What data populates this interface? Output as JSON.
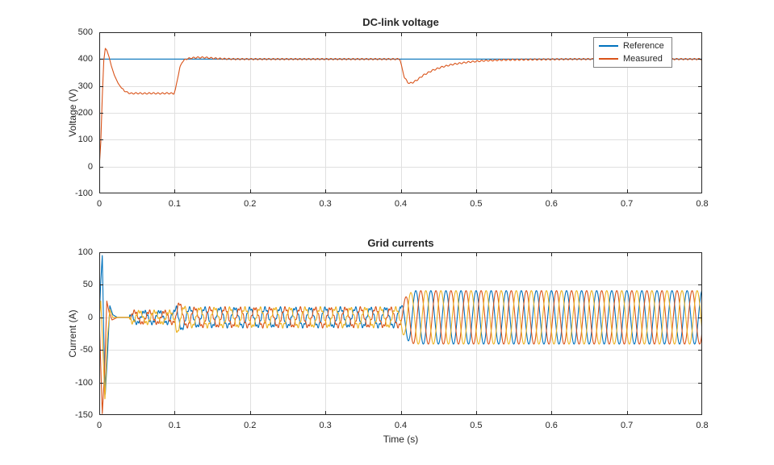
{
  "figure": {
    "background": "#ffffff"
  },
  "layout_colors": {
    "axis": "#262626",
    "grid": "#e0e0e0",
    "text": "#262626"
  },
  "chart_data": [
    {
      "type": "line",
      "title": "DC-link voltage",
      "xlabel": "",
      "ylabel": "Voltage (V)",
      "xlim": [
        0,
        0.8
      ],
      "ylim": [
        -100,
        500
      ],
      "grid": true,
      "xtick_labels": [
        "0",
        "0.1",
        "0.2",
        "0.3",
        "0.4",
        "0.5",
        "0.6",
        "0.7",
        "0.8"
      ],
      "ytick_labels": [
        "-100",
        "0",
        "100",
        "200",
        "300",
        "400",
        "500"
      ],
      "legend": {
        "position": "northeast",
        "entries": [
          "Reference",
          "Measured"
        ]
      },
      "series": [
        {
          "name": "Reference",
          "color": "#0072BD",
          "points": [
            [
              0,
              400
            ],
            [
              0.8,
              400
            ]
          ]
        },
        {
          "name": "Measured",
          "color": "#D95319",
          "ripple": {
            "amplitude": 2.5,
            "frequency_hz": 170,
            "t_start": 0.03
          },
          "points": [
            [
              0,
              0
            ],
            [
              0.002,
              90
            ],
            [
              0.004,
              260
            ],
            [
              0.006,
              395
            ],
            [
              0.008,
              440
            ],
            [
              0.01,
              433
            ],
            [
              0.013,
              408
            ],
            [
              0.016,
              375
            ],
            [
              0.02,
              340
            ],
            [
              0.025,
              310
            ],
            [
              0.03,
              290
            ],
            [
              0.036,
              277
            ],
            [
              0.042,
              272
            ],
            [
              0.05,
              273
            ],
            [
              0.06,
              272
            ],
            [
              0.07,
              273
            ],
            [
              0.08,
              272
            ],
            [
              0.09,
              273
            ],
            [
              0.099,
              272
            ],
            [
              0.101,
              285
            ],
            [
              0.104,
              330
            ],
            [
              0.107,
              368
            ],
            [
              0.11,
              390
            ],
            [
              0.115,
              400
            ],
            [
              0.122,
              404
            ],
            [
              0.13,
              406
            ],
            [
              0.14,
              406
            ],
            [
              0.152,
              403
            ],
            [
              0.165,
              401
            ],
            [
              0.18,
              400
            ],
            [
              0.22,
              400
            ],
            [
              0.26,
              400
            ],
            [
              0.3,
              400
            ],
            [
              0.35,
              400
            ],
            [
              0.399,
              400
            ],
            [
              0.402,
              362
            ],
            [
              0.405,
              332
            ],
            [
              0.409,
              314
            ],
            [
              0.412,
              310
            ],
            [
              0.416,
              313
            ],
            [
              0.421,
              321
            ],
            [
              0.43,
              340
            ],
            [
              0.442,
              358
            ],
            [
              0.455,
              371
            ],
            [
              0.47,
              381
            ],
            [
              0.49,
              389
            ],
            [
              0.51,
              394
            ],
            [
              0.535,
              397
            ],
            [
              0.56,
              398
            ],
            [
              0.59,
              399
            ],
            [
              0.63,
              400
            ],
            [
              0.68,
              400
            ],
            [
              0.73,
              400
            ],
            [
              0.8,
              400
            ]
          ]
        }
      ]
    },
    {
      "type": "line",
      "title": "Grid currents",
      "xlabel": "Time (s)",
      "ylabel": "Current (A)",
      "xlim": [
        0,
        0.8
      ],
      "ylim": [
        -150,
        100
      ],
      "grid": true,
      "xtick_labels": [
        "0",
        "0.1",
        "0.2",
        "0.3",
        "0.4",
        "0.5",
        "0.6",
        "0.7",
        "0.8"
      ],
      "ytick_labels": [
        "-150",
        "-100",
        "-50",
        "0",
        "50",
        "100"
      ],
      "three_phase_model": {
        "frequency_hz": 50,
        "sample_step_s": 0.0002,
        "phases_deg": [
          90,
          -30,
          210
        ],
        "ripple": {
          "amplitude": 2.5,
          "frequency_hz": 290,
          "t_start": 0.04,
          "t_end": 0.4
        },
        "amplitude_envelope": [
          [
            0,
            0
          ],
          [
            0.04,
            0
          ],
          [
            0.044,
            9
          ],
          [
            0.1,
            9
          ],
          [
            0.103,
            24
          ],
          [
            0.108,
            20
          ],
          [
            0.115,
            14
          ],
          [
            0.16,
            14
          ],
          [
            0.25,
            14
          ],
          [
            0.4,
            14
          ],
          [
            0.403,
            26
          ],
          [
            0.41,
            36
          ],
          [
            0.418,
            41
          ],
          [
            0.5,
            41
          ],
          [
            0.65,
            41
          ],
          [
            0.8,
            41
          ]
        ],
        "phases": [
          {
            "color": "#0072BD",
            "startup_points": [
              [
                0,
                0
              ],
              [
                0.002,
                55
              ],
              [
                0.004,
                95
              ],
              [
                0.006,
                -30
              ],
              [
                0.008,
                -118
              ],
              [
                0.011,
                -55
              ],
              [
                0.014,
                18
              ],
              [
                0.018,
                4
              ],
              [
                0.024,
                0
              ]
            ]
          },
          {
            "color": "#D95319",
            "startup_points": [
              [
                0,
                0
              ],
              [
                0.002,
                -75
              ],
              [
                0.004,
                -148
              ],
              [
                0.007,
                -85
              ],
              [
                0.01,
                25
              ],
              [
                0.013,
                8
              ],
              [
                0.017,
                -4
              ],
              [
                0.024,
                0
              ]
            ]
          },
          {
            "color": "#EDB120",
            "startup_points": [
              [
                0,
                0
              ],
              [
                0.002,
                25
              ],
              [
                0.005,
                -55
              ],
              [
                0.0075,
                -128
              ],
              [
                0.0105,
                -35
              ],
              [
                0.014,
                12
              ],
              [
                0.018,
                0
              ],
              [
                0.024,
                0
              ]
            ]
          }
        ]
      }
    }
  ]
}
